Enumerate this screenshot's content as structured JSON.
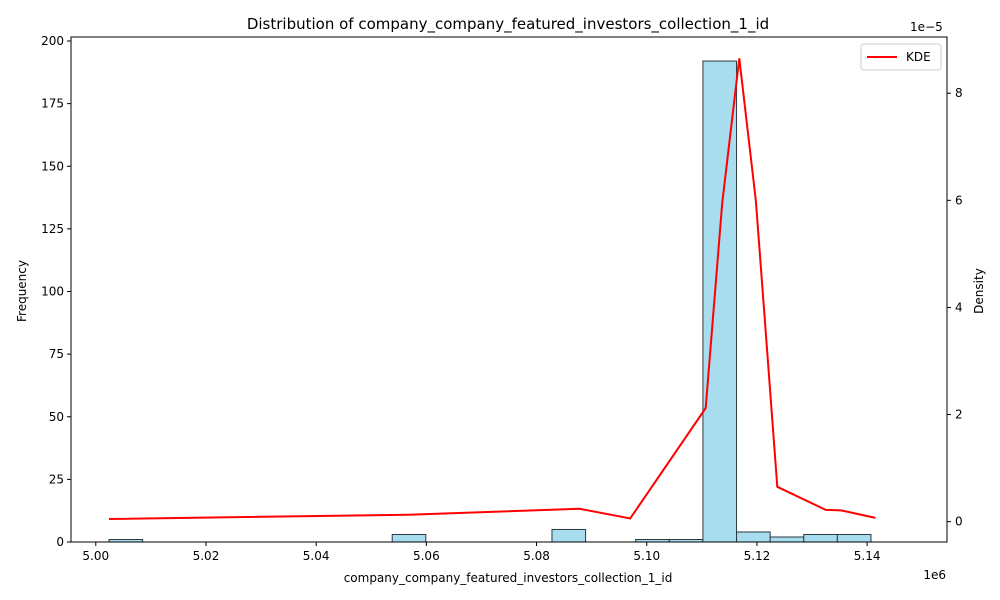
{
  "chart_data": {
    "type": "bar",
    "title": "Distribution of company_company_featured_investors_collection_1_id",
    "xlabel": "company_company_featured_investors_collection_1_id",
    "ylabel": "Frequency",
    "y2label": "Density",
    "x_offset_label": "1e6",
    "y2_offset_label": "1e−5",
    "xlim": [
      4.9955,
      5.1545
    ],
    "ylim": [
      0,
      201.6
    ],
    "y2lim": [
      -0.38,
      9.05
    ],
    "x_ticks": [
      5.0,
      5.02,
      5.04,
      5.06,
      5.08,
      5.1,
      5.12,
      5.14
    ],
    "x_tick_labels": [
      "5.00",
      "5.02",
      "5.04",
      "5.06",
      "5.08",
      "5.10",
      "5.12",
      "5.14"
    ],
    "y_ticks": [
      0,
      25,
      50,
      75,
      100,
      125,
      150,
      175,
      200
    ],
    "y_tick_labels": [
      "0",
      "25",
      "50",
      "75",
      "100",
      "125",
      "150",
      "175",
      "200"
    ],
    "y2_ticks": [
      0,
      2,
      4,
      6,
      8
    ],
    "y2_tick_labels": [
      "0",
      "2",
      "4",
      "6",
      "8"
    ],
    "bars": [
      {
        "x0": 5.0024,
        "x1": 5.0085,
        "value": 1
      },
      {
        "x0": 5.0085,
        "x1": 5.0146,
        "value": 0
      },
      {
        "x0": 5.0146,
        "x1": 5.0206,
        "value": 0
      },
      {
        "x0": 5.0206,
        "x1": 5.0267,
        "value": 0
      },
      {
        "x0": 5.0267,
        "x1": 5.0328,
        "value": 0
      },
      {
        "x0": 5.0328,
        "x1": 5.0389,
        "value": 0
      },
      {
        "x0": 5.0389,
        "x1": 5.0449,
        "value": 0
      },
      {
        "x0": 5.0449,
        "x1": 5.051,
        "value": 0
      },
      {
        "x0": 5.051,
        "x1": 5.0571,
        "value": 0
      },
      {
        "x0": 5.0538,
        "x1": 5.0599,
        "value": 3
      },
      {
        "x0": 5.0599,
        "x1": 5.066,
        "value": 0
      },
      {
        "x0": 5.066,
        "x1": 5.072,
        "value": 0
      },
      {
        "x0": 5.072,
        "x1": 5.0781,
        "value": 0
      },
      {
        "x0": 5.0781,
        "x1": 5.0828,
        "value": 0
      },
      {
        "x0": 5.0828,
        "x1": 5.0889,
        "value": 5
      },
      {
        "x0": 5.0889,
        "x1": 5.095,
        "value": 0
      },
      {
        "x0": 5.095,
        "x1": 5.098,
        "value": 0
      },
      {
        "x0": 5.098,
        "x1": 5.1041,
        "value": 1
      },
      {
        "x0": 5.1041,
        "x1": 5.1102,
        "value": 1
      },
      {
        "x0": 5.1102,
        "x1": 5.1163,
        "value": 192
      },
      {
        "x0": 5.1163,
        "x1": 5.1224,
        "value": 4
      },
      {
        "x0": 5.1224,
        "x1": 5.1285,
        "value": 2
      },
      {
        "x0": 5.1285,
        "x1": 5.1346,
        "value": 3
      },
      {
        "x0": 5.1346,
        "x1": 5.1407,
        "value": 3
      }
    ],
    "kde": {
      "name": "KDE",
      "color": "#ff0000",
      "points": [
        [
          5.0024,
          0.05
        ],
        [
          5.0567,
          0.13
        ],
        [
          5.0878,
          0.24
        ],
        [
          5.097,
          0.06
        ],
        [
          5.1107,
          2.12
        ],
        [
          5.1137,
          5.95
        ],
        [
          5.1168,
          8.65
        ],
        [
          5.1198,
          6.0
        ],
        [
          5.1213,
          3.95
        ],
        [
          5.1237,
          0.65
        ],
        [
          5.1325,
          0.22
        ],
        [
          5.1353,
          0.21
        ],
        [
          5.1415,
          0.07
        ]
      ]
    },
    "bar_color": "#a8dcef",
    "bar_edge": "#2b3a3f",
    "legend": {
      "position": "top-right",
      "label": "KDE"
    },
    "grid": false
  }
}
